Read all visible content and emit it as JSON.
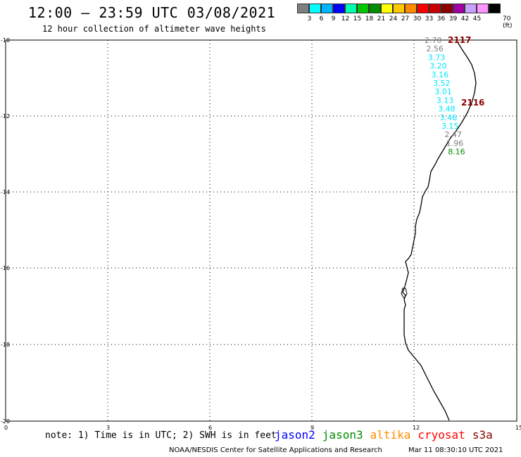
{
  "title": "12:00 – 23:59 UTC 03/08/2021",
  "subtitle": "12 hour collection of altimeter wave heights",
  "legend": {
    "unit": "70 (ft)",
    "colors": [
      "#7f7f7f",
      "#00ffff",
      "#00b4ff",
      "#0000ff",
      "#00ffaf",
      "#00c800",
      "#008c00",
      "#ffff00",
      "#ffc800",
      "#ff8c00",
      "#ff0000",
      "#c80000",
      "#8c0000",
      "#a000a0",
      "#c8a0ff",
      "#ff96ff",
      "#000000"
    ],
    "labels": [
      "3",
      "6",
      "9",
      "12",
      "15",
      "18",
      "21",
      "24",
      "27",
      "30",
      "33",
      "36",
      "39",
      "42",
      "45"
    ]
  },
  "axes": {
    "y_labels": [
      "-10",
      "-12",
      "-14",
      "-16",
      "-18",
      "-20"
    ],
    "x_labels": [
      "0",
      "3",
      "6",
      "9",
      "12",
      "15"
    ]
  },
  "readings": [
    {
      "text": "2.70",
      "color": "#7f7f7f"
    },
    {
      "text": "2.56",
      "color": "#7f7f7f"
    },
    {
      "text": "3.73",
      "color": "#00e5ff"
    },
    {
      "text": "3.20",
      "color": "#00e5ff"
    },
    {
      "text": "3.16",
      "color": "#00e5ff"
    },
    {
      "text": "3.52",
      "color": "#00e5ff"
    },
    {
      "text": "3.01",
      "color": "#00e5ff"
    },
    {
      "text": "3.13",
      "color": "#00e5ff"
    },
    {
      "text": "3.48",
      "color": "#00e5ff"
    },
    {
      "text": "3.46",
      "color": "#00e5ff"
    },
    {
      "text": "3.15",
      "color": "#00e5ff"
    },
    {
      "text": "2.47",
      "color": "#7f7f7f"
    },
    {
      "text": "1.96",
      "color": "#7f7f7f"
    },
    {
      "text": "8.16",
      "color": "#008c00"
    }
  ],
  "time_markers": [
    {
      "text": "2117",
      "color": "#8c0000"
    },
    {
      "text": "2116",
      "color": "#8c0000"
    }
  ],
  "note": "note: 1) Time is in UTC; 2) SWH is in feet",
  "satellites": [
    {
      "name": "jason2",
      "color": "#0000ff"
    },
    {
      "name": "jason3",
      "color": "#008c00"
    },
    {
      "name": "altika",
      "color": "#ff8c00"
    },
    {
      "name": "cryosat",
      "color": "#ff0000"
    },
    {
      "name": "s3a",
      "color": "#8c0000"
    }
  ],
  "credit": "NOAA/NESDIS Center for Satellite Applications and Research",
  "timestamp": "Mar 11 08:30:10 UTC 2021"
}
